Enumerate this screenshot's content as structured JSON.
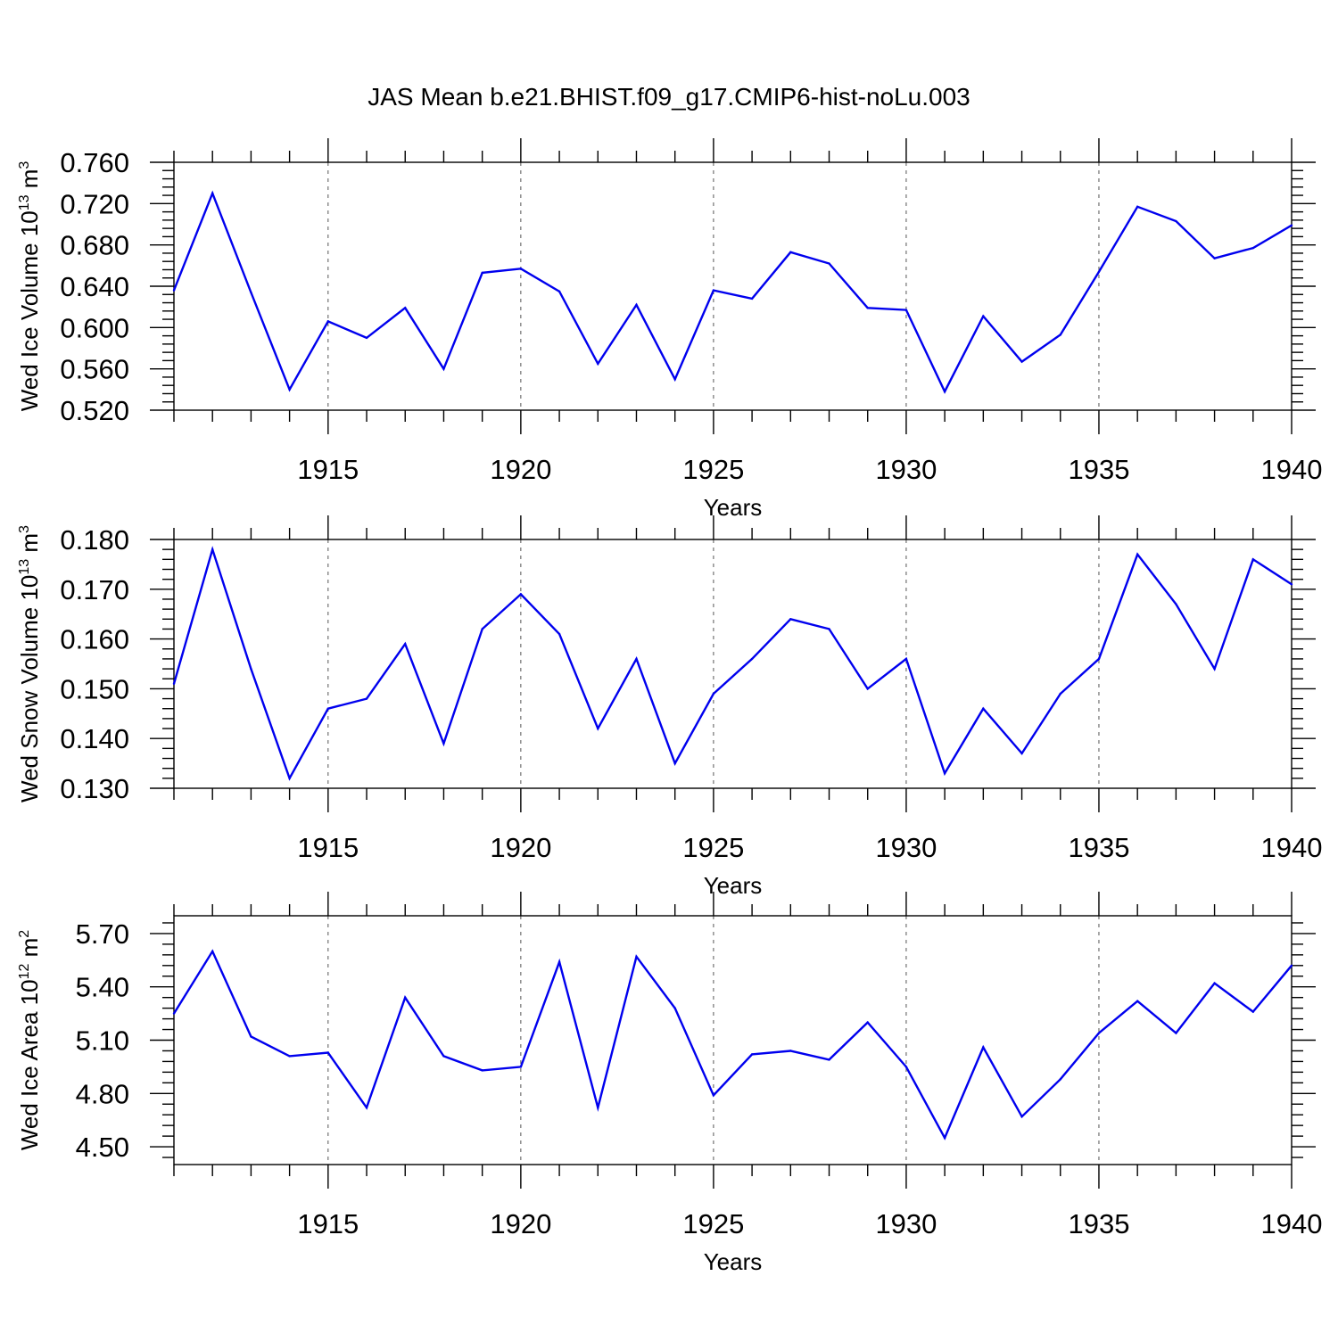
{
  "title": "JAS Mean b.e21.BHIST.f09_g17.CMIP6-hist-noLu.003",
  "colors": {
    "line": "#0000ee",
    "frame": "#000000",
    "grid": "#555555"
  },
  "chart_data": [
    {
      "type": "line",
      "name": "ice-volume",
      "ylabel": {
        "main": "Wed Ice Volume 10",
        "sup": "13",
        "unit": " m",
        "unit_sup": "3"
      },
      "xlabel": "Years",
      "xlim": [
        1911,
        1940
      ],
      "ylim": [
        0.52,
        0.76
      ],
      "y_ticks": [
        "0.520",
        "0.560",
        "0.600",
        "0.640",
        "0.680",
        "0.720",
        "0.760"
      ],
      "x_ticks": [
        "1915",
        "1920",
        "1925",
        "1930",
        "1935",
        "1940"
      ],
      "grid": "vertical dashed at major x ticks",
      "x": [
        1911,
        1912,
        1913,
        1914,
        1915,
        1916,
        1917,
        1918,
        1919,
        1920,
        1921,
        1922,
        1923,
        1924,
        1925,
        1926,
        1927,
        1928,
        1929,
        1930,
        1931,
        1932,
        1933,
        1934,
        1935,
        1936,
        1937,
        1938,
        1939,
        1940
      ],
      "values": [
        0.636,
        0.73,
        0.634,
        0.54,
        0.606,
        0.59,
        0.619,
        0.56,
        0.653,
        0.657,
        0.635,
        0.565,
        0.622,
        0.55,
        0.636,
        0.628,
        0.673,
        0.662,
        0.619,
        0.617,
        0.538,
        0.611,
        0.567,
        0.593,
        0.654,
        0.717,
        0.703,
        0.667,
        0.677,
        0.699
      ]
    },
    {
      "type": "line",
      "name": "snow-volume",
      "ylabel": {
        "main": "Wed Snow Volume 10",
        "sup": "13",
        "unit": " m",
        "unit_sup": "3"
      },
      "xlabel": "Years",
      "xlim": [
        1911,
        1940
      ],
      "ylim": [
        0.13,
        0.18
      ],
      "y_ticks": [
        "0.130",
        "0.140",
        "0.150",
        "0.160",
        "0.170",
        "0.180"
      ],
      "x_ticks": [
        "1915",
        "1920",
        "1925",
        "1930",
        "1935",
        "1940"
      ],
      "grid": "vertical dashed at major x ticks",
      "x": [
        1911,
        1912,
        1913,
        1914,
        1915,
        1916,
        1917,
        1918,
        1919,
        1920,
        1921,
        1922,
        1923,
        1924,
        1925,
        1926,
        1927,
        1928,
        1929,
        1930,
        1931,
        1932,
        1933,
        1934,
        1935,
        1936,
        1937,
        1938,
        1939,
        1940
      ],
      "values": [
        0.151,
        0.178,
        0.154,
        0.132,
        0.146,
        0.148,
        0.159,
        0.139,
        0.162,
        0.169,
        0.161,
        0.142,
        0.156,
        0.135,
        0.149,
        0.156,
        0.164,
        0.162,
        0.15,
        0.156,
        0.133,
        0.146,
        0.137,
        0.149,
        0.156,
        0.177,
        0.167,
        0.154,
        0.176,
        0.171
      ]
    },
    {
      "type": "line",
      "name": "ice-area",
      "ylabel": {
        "main": "Wed Ice Area 10",
        "sup": "12",
        "unit": " m",
        "unit_sup": "2"
      },
      "xlabel": "Years",
      "xlim": [
        1911,
        1940
      ],
      "ylim": [
        4.4,
        5.8
      ],
      "y_ticks": [
        "4.50",
        "4.80",
        "5.10",
        "5.40",
        "5.70"
      ],
      "y_tick_values": [
        4.5,
        4.8,
        5.1,
        5.4,
        5.7
      ],
      "x_ticks": [
        "1915",
        "1920",
        "1925",
        "1930",
        "1935",
        "1940"
      ],
      "grid": "vertical dashed at major x ticks",
      "x": [
        1911,
        1912,
        1913,
        1914,
        1915,
        1916,
        1917,
        1918,
        1919,
        1920,
        1921,
        1922,
        1923,
        1924,
        1925,
        1926,
        1927,
        1928,
        1929,
        1930,
        1931,
        1932,
        1933,
        1934,
        1935,
        1936,
        1937,
        1938,
        1939,
        1940
      ],
      "values": [
        5.25,
        5.6,
        5.12,
        5.01,
        5.03,
        4.72,
        5.34,
        5.01,
        4.93,
        4.95,
        5.54,
        4.72,
        5.57,
        5.28,
        4.79,
        5.02,
        5.04,
        4.99,
        5.2,
        4.95,
        4.55,
        5.06,
        4.67,
        4.88,
        5.14,
        5.32,
        5.14,
        5.42,
        5.26,
        5.52
      ]
    }
  ]
}
